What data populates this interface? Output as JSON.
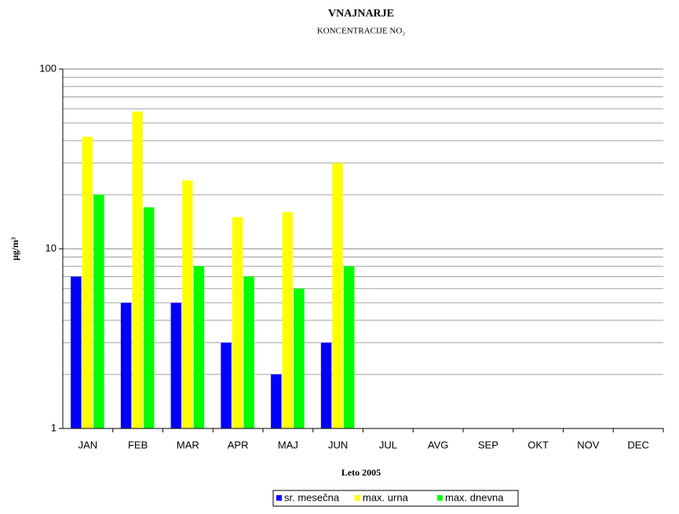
{
  "chart_data": {
    "type": "bar",
    "title": "VNAJNARJE",
    "subtitle": "KONCENTRACIJE  NO₂",
    "x_label": "Leto 2005",
    "y_label": "μg/m³",
    "categories": [
      "JAN",
      "FEB",
      "MAR",
      "APR",
      "MAJ",
      "JUN",
      "JUL",
      "AVG",
      "SEP",
      "OKT",
      "NOV",
      "DEC"
    ],
    "series": [
      {
        "name": "sr. mesečna",
        "color": "#0000ff",
        "values": [
          7,
          5,
          5,
          3,
          2,
          3,
          null,
          null,
          null,
          null,
          null,
          null
        ]
      },
      {
        "name": "max. urna",
        "color": "#ffff00",
        "values": [
          42,
          58,
          24,
          15,
          16,
          30,
          null,
          null,
          null,
          null,
          null,
          null
        ]
      },
      {
        "name": "max. dnevna",
        "color": "#00ff00",
        "values": [
          20,
          17,
          8,
          7,
          6,
          8,
          null,
          null,
          null,
          null,
          null,
          null
        ]
      }
    ],
    "ylim": [
      1,
      100
    ],
    "yticks": [
      1,
      10,
      100
    ],
    "yminorticks": [
      2,
      3,
      4,
      5,
      6,
      7,
      8,
      9,
      20,
      30,
      40,
      50,
      60,
      70,
      80,
      90
    ],
    "log_y": true,
    "grid": true,
    "legend": "bottom"
  }
}
